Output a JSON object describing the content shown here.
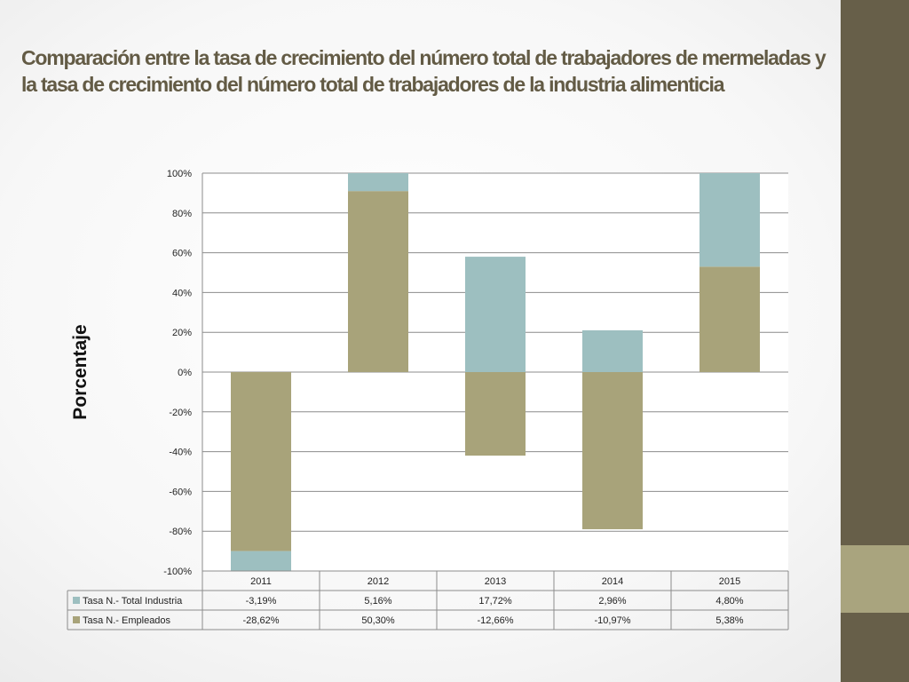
{
  "slide": {
    "title": "Comparación entre la tasa de crecimiento del número total de trabajadores de mermeladas y la tasa de crecimiento del número total de trabajadores de la industria alimenticia"
  },
  "colors": {
    "title": "#635b45",
    "panel_dark": "#675f49",
    "panel_accent": "#a9a47e",
    "series_industria": "#9dbfc0",
    "series_empleados": "#a8a37a"
  },
  "chart_data": {
    "type": "bar",
    "stacked": true,
    "title": "",
    "ylabel": "Porcentaje",
    "xlabel": "",
    "ylim": [
      -100,
      100
    ],
    "yticks": [
      "100%",
      "80%",
      "60%",
      "40%",
      "20%",
      "0%",
      "-20%",
      "-40%",
      "-60%",
      "-80%",
      "-100%"
    ],
    "ytick_values": [
      100,
      80,
      60,
      40,
      20,
      0,
      -20,
      -40,
      -60,
      -80,
      -100
    ],
    "grid": true,
    "categories": [
      "2011",
      "2012",
      "2013",
      "2014",
      "2015"
    ],
    "series": [
      {
        "name": "Tasa N.- Empleados",
        "color": "#a8a37a",
        "labels": [
          "-28,62%",
          "50,30%",
          "-12,66%",
          "-10,97%",
          "5,38%"
        ],
        "values": [
          -90,
          91,
          -42,
          -79,
          53
        ]
      },
      {
        "name": "Tasa N.- Total Industria",
        "color": "#9dbfc0",
        "labels": [
          "-3,19%",
          "5,16%",
          "17,72%",
          "2,96%",
          "4,80%"
        ],
        "values": [
          -10,
          9,
          58,
          21,
          47
        ]
      }
    ],
    "table_rows_order": [
      "Tasa N.- Total Industria",
      "Tasa N.- Empleados"
    ]
  }
}
